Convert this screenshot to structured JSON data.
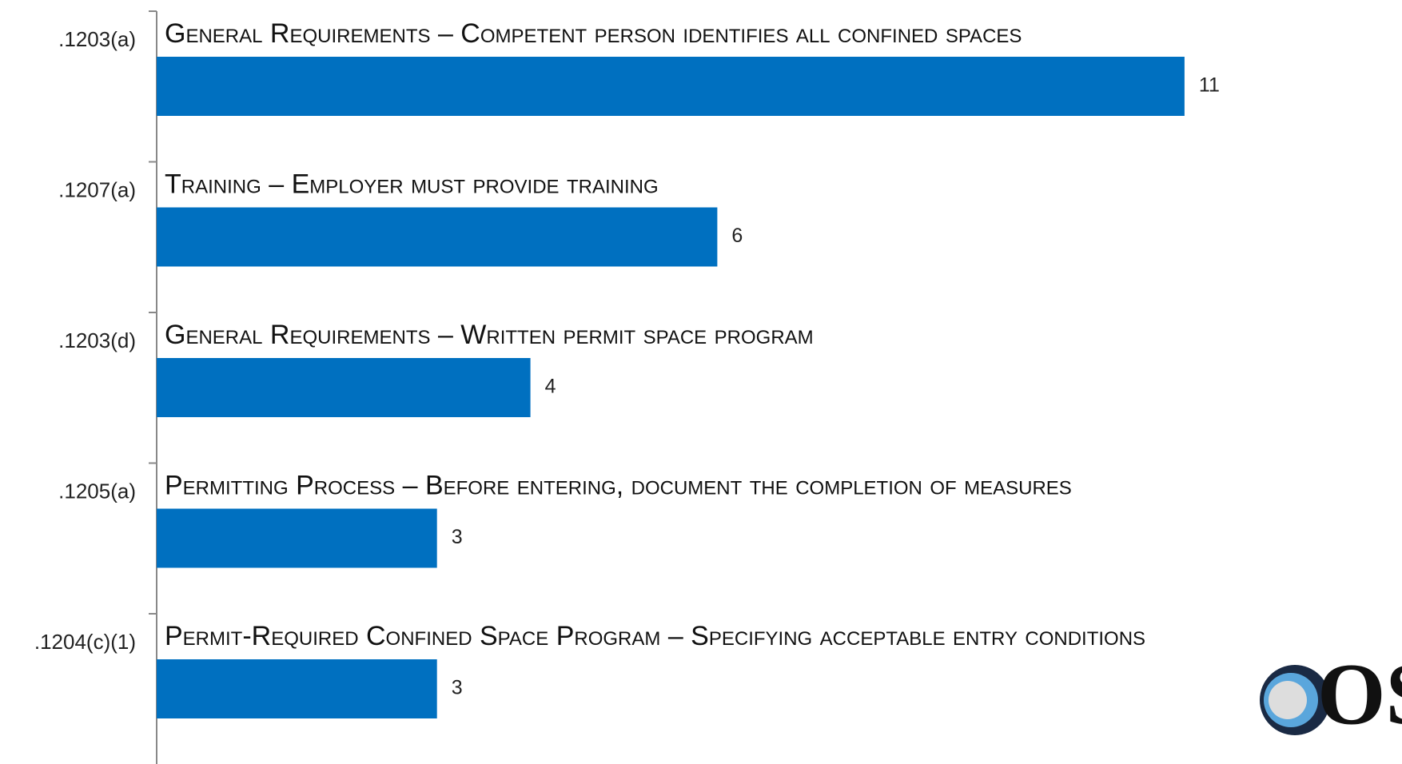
{
  "chart_data": {
    "type": "barh",
    "categories": [
      ".1203(a)",
      ".1207(a)",
      ".1203(d)",
      ".1205(a)",
      ".1204(c)(1)"
    ],
    "descriptions": [
      "General Requirements – Competent person identifies all confined spaces",
      "Training – Employer must provide training",
      "General Requirements – Written permit space program",
      "Permitting Process – Before entering, document the completion of measures",
      "Permit-Required Confined Space Program – Specifying acceptable entry conditions"
    ],
    "values": [
      11,
      6,
      4,
      3,
      3
    ],
    "color": "#0070c0"
  },
  "logo": {
    "text": "OSH"
  }
}
